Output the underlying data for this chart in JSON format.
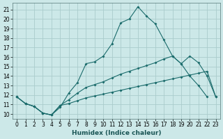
{
  "title": "",
  "xlabel": "Humidex (Indice chaleur)",
  "bg_color": "#cce8e8",
  "grid_color": "#aacccc",
  "line_color": "#1a6b6b",
  "xlim": [
    -0.5,
    23.5
  ],
  "ylim": [
    9.5,
    21.7
  ],
  "xticks": [
    0,
    1,
    2,
    3,
    4,
    5,
    6,
    7,
    8,
    9,
    10,
    11,
    12,
    13,
    14,
    15,
    16,
    17,
    18,
    19,
    20,
    21,
    22,
    23
  ],
  "yticks": [
    10,
    11,
    12,
    13,
    14,
    15,
    16,
    17,
    18,
    19,
    20,
    21
  ],
  "line1_x": [
    0,
    1,
    2,
    3,
    4,
    5,
    6,
    7,
    8,
    9,
    10,
    11,
    12,
    13,
    14,
    15,
    16,
    17,
    18,
    19,
    20,
    21,
    22
  ],
  "line1_y": [
    11.8,
    11.1,
    10.8,
    10.1,
    9.9,
    10.7,
    12.2,
    13.3,
    15.3,
    15.5,
    16.1,
    17.4,
    19.6,
    20.0,
    21.3,
    20.3,
    19.5,
    17.8,
    16.1,
    15.3,
    14.0,
    13.0,
    11.8
  ],
  "line2_x": [
    0,
    1,
    2,
    3,
    4,
    5,
    6,
    7,
    8,
    9,
    10,
    11,
    12,
    13,
    14,
    15,
    16,
    17,
    18,
    19,
    20,
    21,
    22,
    23
  ],
  "line2_y": [
    11.8,
    11.1,
    10.8,
    10.1,
    9.9,
    10.9,
    11.5,
    12.2,
    12.8,
    13.1,
    13.4,
    13.8,
    14.2,
    14.5,
    14.8,
    15.1,
    15.4,
    15.8,
    16.1,
    15.3,
    16.1,
    15.4,
    14.0,
    11.8
  ],
  "line3_x": [
    0,
    1,
    2,
    3,
    4,
    5,
    6,
    7,
    8,
    9,
    10,
    11,
    12,
    13,
    14,
    15,
    16,
    17,
    18,
    19,
    20,
    21,
    22,
    23
  ],
  "line3_y": [
    11.8,
    11.1,
    10.8,
    10.1,
    9.9,
    10.9,
    11.1,
    11.4,
    11.7,
    11.9,
    12.1,
    12.3,
    12.5,
    12.7,
    12.9,
    13.1,
    13.3,
    13.5,
    13.7,
    13.9,
    14.1,
    14.3,
    14.5,
    11.8
  ]
}
